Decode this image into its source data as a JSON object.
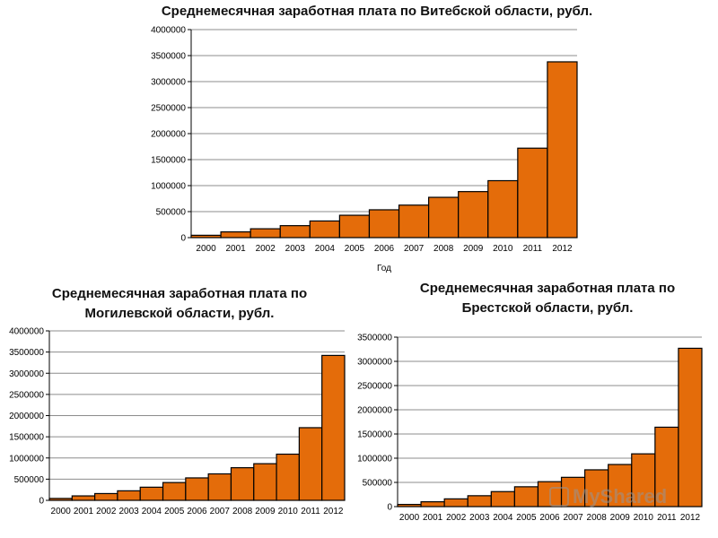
{
  "chart_data": [
    {
      "type": "bar",
      "title_lines": [
        "Среднемесячная заработная плата по Витебской области, рубл."
      ],
      "xlabel": "Год",
      "ylabel": "",
      "ylim": [
        0,
        4000000
      ],
      "yticks": [
        "0",
        "500000",
        "1000000",
        "1500000",
        "2000000",
        "2500000",
        "3000000",
        "3500000",
        "4000000"
      ],
      "categories": [
        "2000",
        "2001",
        "2002",
        "2003",
        "2004",
        "2005",
        "2006",
        "2007",
        "2008",
        "2009",
        "2010",
        "2011",
        "2012"
      ],
      "values": [
        45000,
        110000,
        170000,
        230000,
        320000,
        430000,
        535000,
        625000,
        775000,
        885000,
        1095000,
        1720000,
        3380000
      ],
      "bar_color": "#E46C0A",
      "grid": true
    },
    {
      "type": "bar",
      "title_lines": [
        "Среднемесячная заработная плата по",
        "Могилевской области, рубл."
      ],
      "xlabel": "",
      "ylabel": "",
      "ylim": [
        0,
        4000000
      ],
      "yticks": [
        "0",
        "500000",
        "1000000",
        "1500000",
        "2000000",
        "2500000",
        "3000000",
        "3500000",
        "4000000"
      ],
      "categories": [
        "2000",
        "2001",
        "2002",
        "2003",
        "2004",
        "2005",
        "2006",
        "2007",
        "2008",
        "2009",
        "2010",
        "2011",
        "2012"
      ],
      "values": [
        45000,
        105000,
        160000,
        225000,
        310000,
        420000,
        530000,
        625000,
        770000,
        865000,
        1090000,
        1715000,
        3420000
      ],
      "bar_color": "#E46C0A",
      "grid": true
    },
    {
      "type": "bar",
      "title_lines": [
        "Среднемесячная заработная плата по",
        "Брестской области, рубл."
      ],
      "xlabel": "",
      "ylabel": "",
      "ylim": [
        0,
        3500000
      ],
      "yticks": [
        "0",
        "500000",
        "1000000",
        "1500000",
        "2000000",
        "2500000",
        "3000000",
        "3500000"
      ],
      "categories": [
        "2000",
        "2001",
        "2002",
        "2003",
        "2004",
        "2005",
        "2006",
        "2007",
        "2008",
        "2009",
        "2010",
        "2011",
        "2012"
      ],
      "values": [
        45000,
        100000,
        160000,
        225000,
        310000,
        410000,
        515000,
        605000,
        760000,
        870000,
        1090000,
        1640000,
        3270000
      ],
      "bar_color": "#E46C0A",
      "grid": true
    }
  ],
  "watermark": {
    "text": "MyShared",
    "icon": "presentation-icon"
  }
}
